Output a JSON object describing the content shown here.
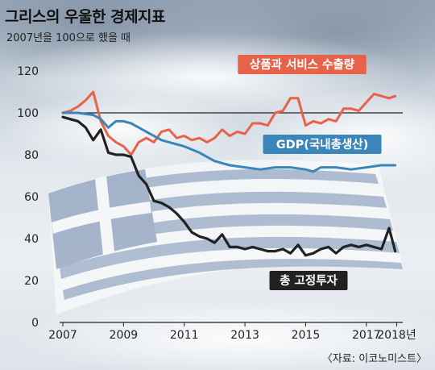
{
  "chart_data": {
    "type": "line",
    "title": "그리스의 우울한 경제지표",
    "subtitle": "2007년을 100으로 했을 때",
    "source": "〈자료: 이코노미스트〉",
    "x_tick_labels": [
      "2007",
      "2009",
      "2011",
      "2013",
      "2015",
      "2017",
      "2018년"
    ],
    "x_ticks": [
      2007,
      2009,
      2011,
      2013,
      2015,
      2017,
      2018
    ],
    "xlim": [
      2007,
      2018.2
    ],
    "y_ticks": [
      0,
      20,
      40,
      60,
      80,
      100,
      120
    ],
    "ylim": [
      0,
      120
    ],
    "reference_line": 100,
    "series": [
      {
        "name": "상품과 서비스 수출량",
        "color": "#e8624a",
        "label_style": "box",
        "x": [
          2007.0,
          2007.25,
          2007.5,
          2007.75,
          2008.0,
          2008.25,
          2008.5,
          2008.75,
          2009.0,
          2009.25,
          2009.5,
          2009.75,
          2010.0,
          2010.25,
          2010.5,
          2010.75,
          2011.0,
          2011.25,
          2011.5,
          2011.75,
          2012.0,
          2012.25,
          2012.5,
          2012.75,
          2013.0,
          2013.25,
          2013.5,
          2013.75,
          2014.0,
          2014.25,
          2014.5,
          2014.75,
          2015.0,
          2015.25,
          2015.5,
          2015.75,
          2016.0,
          2016.25,
          2016.5,
          2016.75,
          2017.0,
          2017.25,
          2017.5,
          2017.75,
          2017.95
        ],
        "y": [
          100,
          101,
          103,
          106,
          110,
          96,
          89,
          86,
          84,
          80,
          86,
          88,
          86,
          91,
          92,
          88,
          89,
          87,
          88,
          86,
          88,
          92,
          89,
          91,
          90,
          95,
          95,
          94,
          100,
          101,
          107,
          107,
          94,
          96,
          95,
          97,
          96,
          102,
          102,
          101,
          105,
          109,
          108,
          107,
          108
        ]
      },
      {
        "name": "GDP(국내총생산)",
        "color": "#3b86b8",
        "label_style": "box",
        "x": [
          2007.0,
          2007.5,
          2008.0,
          2008.25,
          2008.5,
          2008.75,
          2009.0,
          2009.25,
          2009.5,
          2009.75,
          2010.0,
          2010.25,
          2010.5,
          2010.75,
          2011.0,
          2011.5,
          2012.0,
          2012.5,
          2013.0,
          2013.5,
          2014.0,
          2014.5,
          2015.0,
          2015.25,
          2015.5,
          2016.0,
          2016.5,
          2017.0,
          2017.5,
          2017.95
        ],
        "y": [
          100,
          100,
          99,
          97,
          93,
          96,
          96,
          95,
          93,
          91,
          89,
          87,
          86,
          85,
          84,
          81,
          77,
          75,
          74,
          73,
          74,
          74,
          73,
          72,
          74,
          74,
          73,
          74,
          75,
          75
        ]
      },
      {
        "name": "총 고정투자",
        "color": "#222222",
        "label_style": "box-dark",
        "x": [
          2007.0,
          2007.25,
          2007.5,
          2007.75,
          2008.0,
          2008.25,
          2008.5,
          2008.75,
          2009.0,
          2009.25,
          2009.5,
          2009.75,
          2010.0,
          2010.25,
          2010.5,
          2010.75,
          2011.0,
          2011.25,
          2011.5,
          2011.75,
          2012.0,
          2012.25,
          2012.5,
          2012.75,
          2013.0,
          2013.25,
          2013.5,
          2013.75,
          2014.0,
          2014.25,
          2014.5,
          2014.75,
          2015.0,
          2015.25,
          2015.5,
          2015.75,
          2016.0,
          2016.25,
          2016.5,
          2016.75,
          2017.0,
          2017.25,
          2017.5,
          2017.75,
          2017.95
        ],
        "y": [
          98,
          97,
          96,
          93,
          87,
          92,
          81,
          80,
          80,
          79,
          70,
          66,
          58,
          57,
          55,
          52,
          48,
          43,
          41,
          40,
          38,
          42,
          36,
          36,
          35,
          36,
          35,
          34,
          34,
          35,
          33,
          37,
          32,
          33,
          35,
          36,
          33,
          36,
          37,
          36,
          37,
          36,
          35,
          45,
          34
        ]
      }
    ],
    "annotations": [
      {
        "text": "상품과 서비스 수출량",
        "series": 0
      },
      {
        "text": "GDP(국내총생산)",
        "series": 1
      },
      {
        "text": "총 고정투자",
        "series": 2
      }
    ]
  }
}
